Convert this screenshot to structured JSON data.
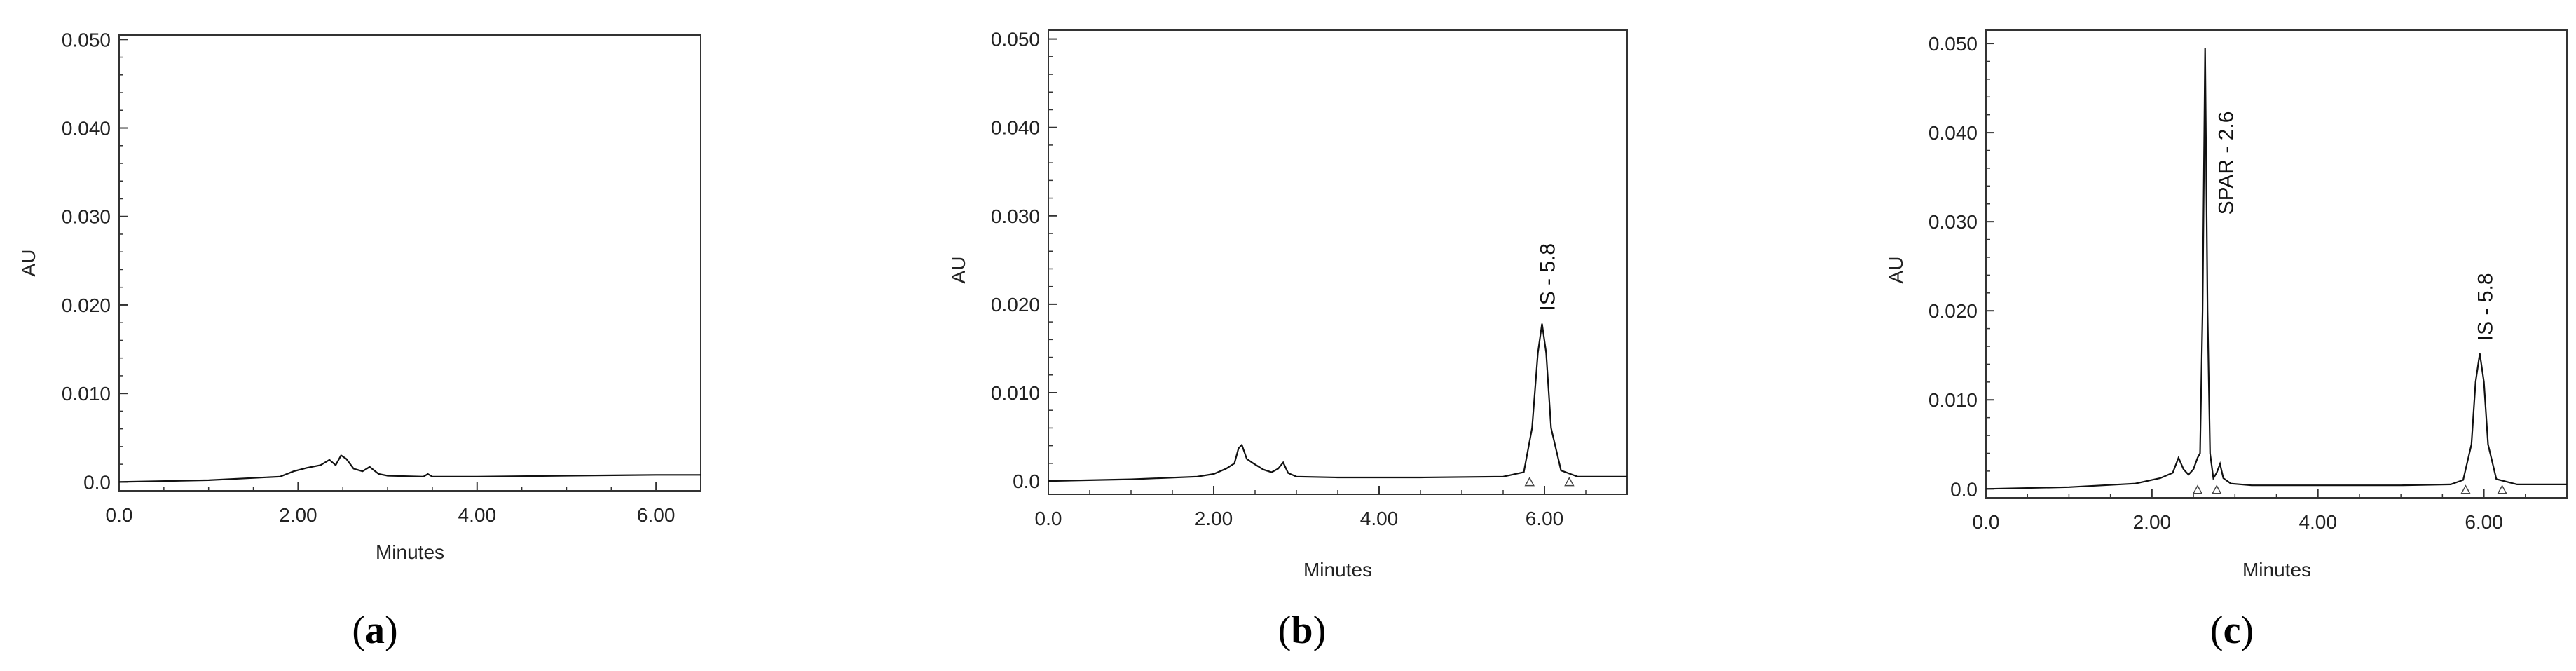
{
  "chart_data": [
    {
      "type": "line",
      "panel_label_open": "(",
      "panel_label_letter": "a",
      "panel_label_close": ")",
      "xlabel": "Minutes",
      "ylabel": "AU",
      "xlim": [
        0,
        6.5
      ],
      "ylim": [
        -0.001,
        0.0505
      ],
      "x_ticks": [
        "0.0",
        "2.00",
        "4.00",
        "6.00"
      ],
      "x_tick_values": [
        0,
        2,
        4,
        6
      ],
      "y_ticks": [
        "0.0",
        "0.010",
        "0.020",
        "0.030",
        "0.040",
        "0.050"
      ],
      "y_tick_values": [
        0,
        0.01,
        0.02,
        0.03,
        0.04,
        0.05
      ],
      "grid": false,
      "frame": "box",
      "series": [
        {
          "x": [
            0,
            1.0,
            1.8,
            1.95,
            2.1,
            2.25,
            2.35,
            2.42,
            2.48,
            2.54,
            2.62,
            2.72,
            2.8,
            2.9,
            3.0,
            3.4,
            3.45,
            3.5,
            4.0,
            5.0,
            6.0,
            6.5
          ],
          "values": [
            0.0,
            0.0002,
            0.0006,
            0.0012,
            0.0016,
            0.0019,
            0.0025,
            0.0019,
            0.003,
            0.0026,
            0.0015,
            0.0012,
            0.0017,
            0.0009,
            0.0007,
            0.0006,
            0.0009,
            0.0006,
            0.0006,
            0.0007,
            0.0008,
            0.0008
          ]
        }
      ],
      "peaks": []
    },
    {
      "type": "line",
      "panel_label_open": "(",
      "panel_label_letter": "b",
      "panel_label_close": ")",
      "xlabel": "Minutes",
      "ylabel": "AU",
      "xlim": [
        0,
        7
      ],
      "ylim": [
        -0.0015,
        0.051
      ],
      "x_ticks": [
        "0.0",
        "2.00",
        "4.00",
        "6.00"
      ],
      "x_tick_values": [
        0,
        2,
        4,
        6
      ],
      "y_ticks": [
        "0.0",
        "0.010",
        "0.020",
        "0.030",
        "0.040",
        "0.050"
      ],
      "y_tick_values": [
        0,
        0.01,
        0.02,
        0.03,
        0.04,
        0.05
      ],
      "grid": false,
      "frame": "box",
      "series": [
        {
          "x": [
            0,
            1.0,
            1.8,
            2.0,
            2.15,
            2.25,
            2.3,
            2.34,
            2.4,
            2.48,
            2.6,
            2.7,
            2.78,
            2.84,
            2.9,
            3.0,
            3.5,
            4.5,
            5.5,
            5.75,
            5.85,
            5.92,
            5.97,
            6.02,
            6.08,
            6.2,
            6.4,
            7.0
          ],
          "values": [
            0.0,
            0.0002,
            0.0005,
            0.0008,
            0.0014,
            0.002,
            0.0037,
            0.0041,
            0.0025,
            0.002,
            0.0013,
            0.001,
            0.0014,
            0.0021,
            0.0009,
            0.0005,
            0.0004,
            0.0004,
            0.0005,
            0.001,
            0.006,
            0.0145,
            0.0178,
            0.0145,
            0.006,
            0.0012,
            0.0005,
            0.0005
          ]
        }
      ],
      "peaks": [
        {
          "label": "IS - 5.8",
          "x": 5.97,
          "y": 0.0178
        }
      ],
      "integration_marks": [
        5.82,
        6.3
      ]
    },
    {
      "type": "line",
      "panel_label_open": "(",
      "panel_label_letter": "c",
      "panel_label_close": ")",
      "xlabel": "Minutes",
      "ylabel": "AU",
      "xlim": [
        0,
        7
      ],
      "ylim": [
        -0.001,
        0.0515
      ],
      "x_ticks": [
        "0.0",
        "2.00",
        "4.00",
        "6.00"
      ],
      "x_tick_values": [
        0,
        2,
        4,
        6
      ],
      "y_ticks": [
        "0.0",
        "0.010",
        "0.020",
        "0.030",
        "0.040",
        "0.050"
      ],
      "y_tick_values": [
        0,
        0.01,
        0.02,
        0.03,
        0.04,
        0.05
      ],
      "grid": false,
      "frame": "box",
      "series": [
        {
          "x": [
            0,
            1.0,
            1.8,
            2.1,
            2.25,
            2.32,
            2.38,
            2.44,
            2.5,
            2.55,
            2.58,
            2.61,
            2.64,
            2.67,
            2.7,
            2.74,
            2.78,
            2.82,
            2.86,
            2.95,
            3.2,
            4.0,
            5.0,
            5.6,
            5.75,
            5.85,
            5.9,
            5.95,
            6.0,
            6.05,
            6.15,
            6.4,
            7.0
          ],
          "values": [
            0.0,
            0.0002,
            0.0006,
            0.0012,
            0.0018,
            0.0035,
            0.0022,
            0.0016,
            0.0022,
            0.0035,
            0.004,
            0.02,
            0.0495,
            0.02,
            0.004,
            0.0012,
            0.0018,
            0.0028,
            0.0012,
            0.0006,
            0.0004,
            0.0004,
            0.0004,
            0.0005,
            0.001,
            0.005,
            0.012,
            0.0152,
            0.012,
            0.005,
            0.0011,
            0.0005,
            0.0005
          ]
        }
      ],
      "peaks": [
        {
          "label": "SPAR - 2.6",
          "x": 2.64,
          "y": 0.0495
        },
        {
          "label": "IS - 5.8",
          "x": 5.95,
          "y": 0.0152
        }
      ],
      "integration_marks": [
        2.55,
        2.78,
        5.78,
        6.22
      ]
    }
  ]
}
